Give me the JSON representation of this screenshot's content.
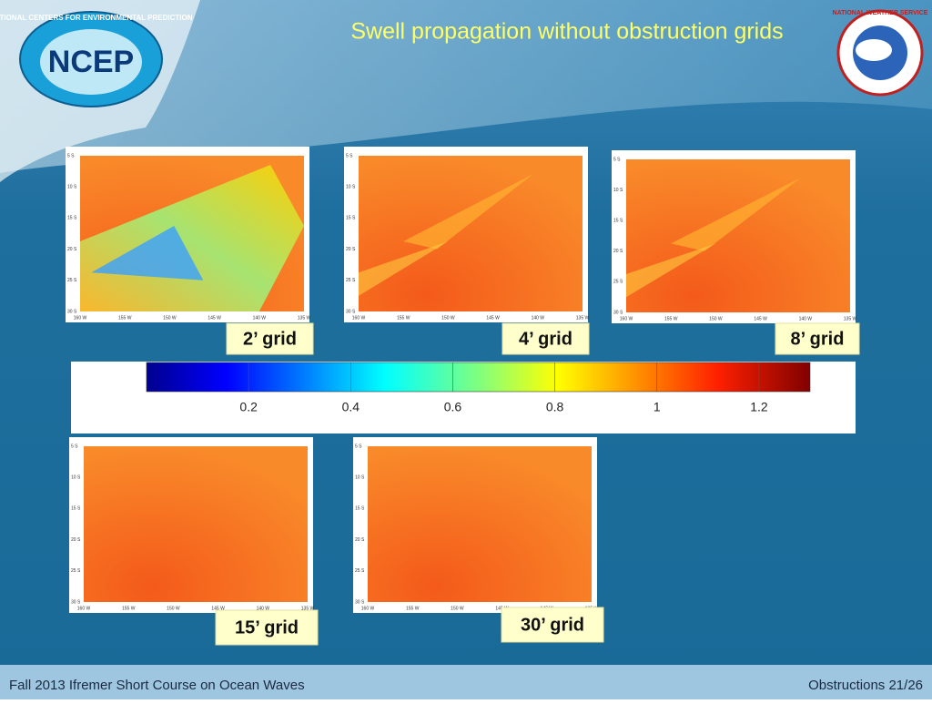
{
  "header": {
    "title": "Swell propagation without obstruction grids",
    "left_logo": {
      "ring_text": "NATIONAL CENTERS FOR ENVIRONMENTAL PREDICTION",
      "name": "NCEP"
    },
    "right_logo": {
      "ring_text": "NATIONAL WEATHER SERVICE"
    }
  },
  "map_axes": {
    "lat_labels": [
      "5 S",
      "10 S",
      "15 S",
      "20 S",
      "25 S",
      "30 S"
    ],
    "lon_labels": [
      "160 W",
      "155 W",
      "150 W",
      "145 W",
      "140 W",
      "135 W"
    ]
  },
  "panels": [
    {
      "label": "2’ grid"
    },
    {
      "label": "4’ grid"
    },
    {
      "label": "8’ grid"
    },
    {
      "label": "15’ grid"
    },
    {
      "label": "30’ grid"
    }
  ],
  "colorbar": {
    "range": [
      0,
      1.3
    ],
    "ticks": [
      {
        "value": 0.2,
        "label": "0.2"
      },
      {
        "value": 0.4,
        "label": "0.4"
      },
      {
        "value": 0.6,
        "label": "0.6"
      },
      {
        "value": 0.8,
        "label": "0.8"
      },
      {
        "value": 1,
        "label": "1"
      },
      {
        "value": 1.2,
        "label": "1.2"
      }
    ]
  },
  "footer": {
    "left": "Fall 2013 Ifremer Short Course on Ocean Waves",
    "right": "Obstructions 21/26"
  }
}
